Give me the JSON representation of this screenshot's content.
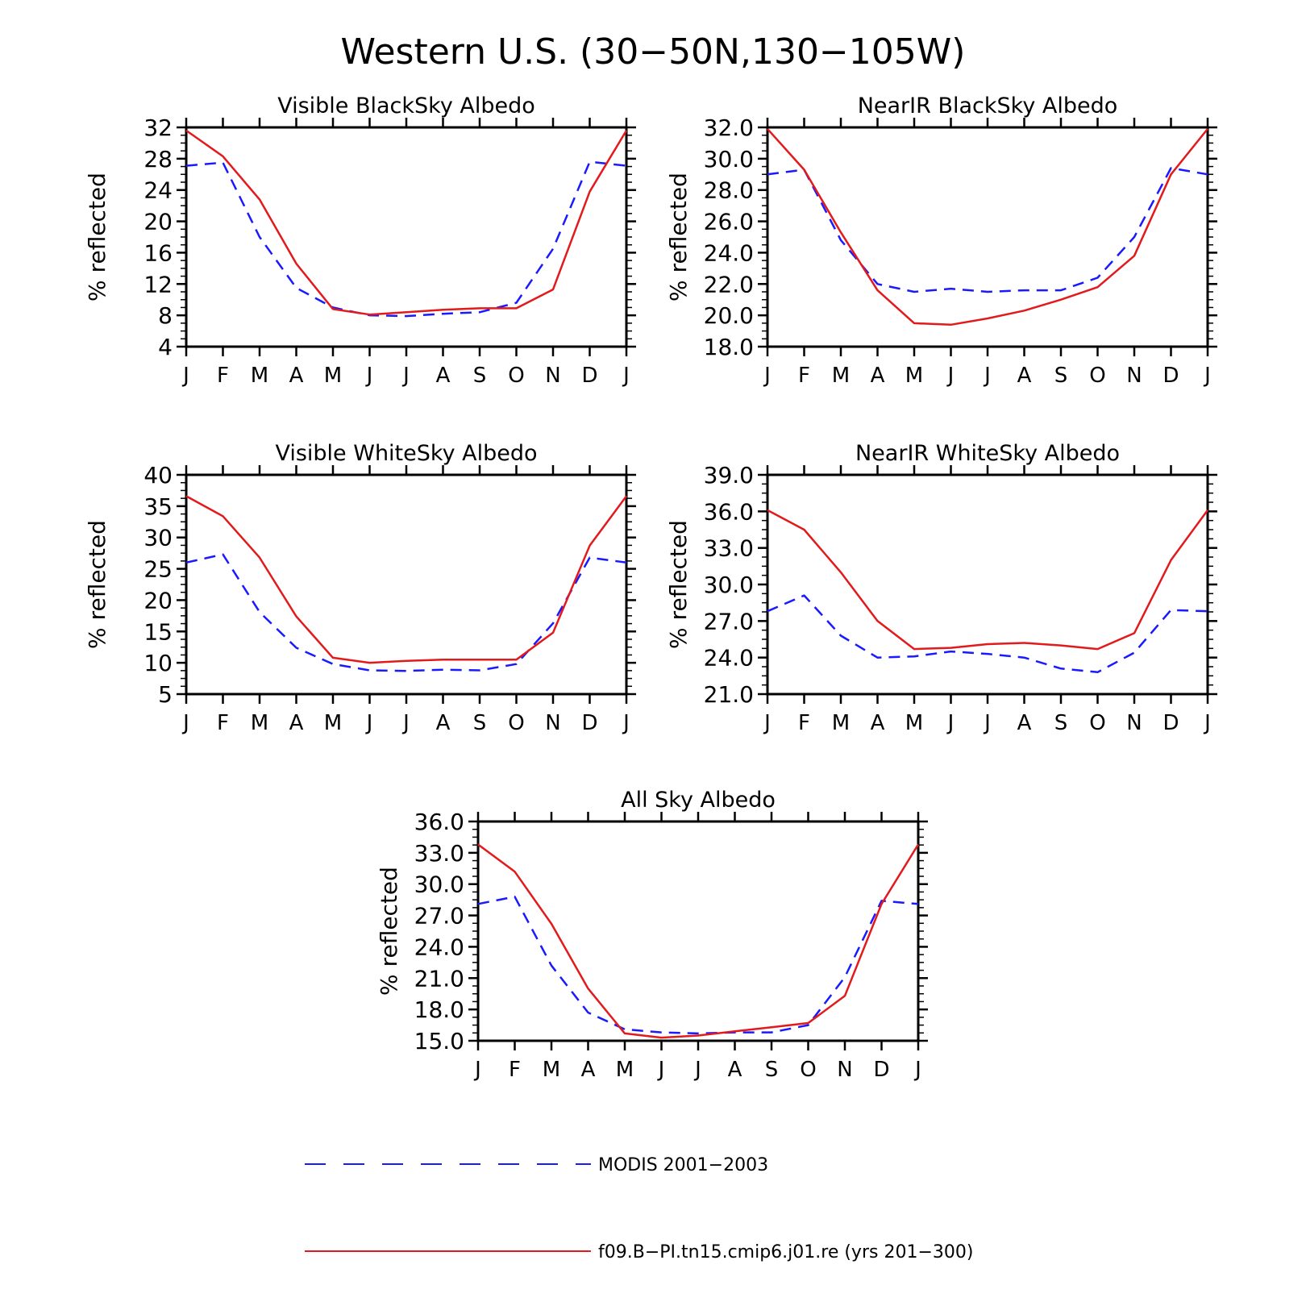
{
  "figure": {
    "title": "Western U.S. (30−50N,130−105W)",
    "colors": {
      "modis": "#1a1aff",
      "model": "#e31a1c",
      "axis": "#000000"
    }
  },
  "legend": {
    "entries": [
      {
        "key": "modis",
        "label": "MODIS 2001−2003",
        "style": "dashed"
      },
      {
        "key": "model",
        "label": "f09.B−PI.tn15.cmip6.j01.re (yrs 201−300)",
        "style": "solid"
      }
    ]
  },
  "chart_data": [
    {
      "type": "line",
      "title": "Visible BlackSky Albedo",
      "ylabel": "% reflected",
      "categories": [
        "J",
        "F",
        "M",
        "A",
        "M",
        "J",
        "J",
        "A",
        "S",
        "O",
        "N",
        "D",
        "J"
      ],
      "ylim": [
        4,
        32
      ],
      "yticks": [
        "4",
        "8",
        "12",
        "16",
        "20",
        "24",
        "28",
        "32"
      ],
      "series": [
        {
          "key": "modis",
          "values": [
            27.1,
            27.5,
            18.0,
            11.5,
            9.0,
            8.0,
            7.9,
            8.2,
            8.4,
            9.6,
            16.5,
            27.6,
            27.1
          ]
        },
        {
          "key": "model",
          "values": [
            31.6,
            28.3,
            22.8,
            14.6,
            8.8,
            8.1,
            8.4,
            8.7,
            8.9,
            8.9,
            11.3,
            23.8,
            31.6
          ]
        }
      ]
    },
    {
      "type": "line",
      "title": "NearIR BlackSky Albedo",
      "ylabel": "% reflected",
      "categories": [
        "J",
        "F",
        "M",
        "A",
        "M",
        "J",
        "J",
        "A",
        "S",
        "O",
        "N",
        "D",
        "J"
      ],
      "ylim": [
        18,
        32
      ],
      "yticks": [
        "18.0",
        "20.0",
        "22.0",
        "24.0",
        "26.0",
        "28.0",
        "30.0",
        "32.0"
      ],
      "series": [
        {
          "key": "modis",
          "values": [
            29.0,
            29.3,
            24.8,
            22.0,
            21.5,
            21.7,
            21.5,
            21.6,
            21.6,
            22.4,
            25.0,
            29.4,
            29.0
          ]
        },
        {
          "key": "model",
          "values": [
            31.9,
            29.3,
            25.3,
            21.6,
            19.5,
            19.4,
            19.8,
            20.3,
            21.0,
            21.8,
            23.8,
            29.0,
            31.9
          ]
        }
      ]
    },
    {
      "type": "line",
      "title": "Visible WhiteSky Albedo",
      "ylabel": "% reflected",
      "categories": [
        "J",
        "F",
        "M",
        "A",
        "M",
        "J",
        "J",
        "A",
        "S",
        "O",
        "N",
        "D",
        "J"
      ],
      "ylim": [
        5,
        40
      ],
      "yticks": [
        "5",
        "10",
        "15",
        "20",
        "25",
        "30",
        "35",
        "40"
      ],
      "series": [
        {
          "key": "modis",
          "values": [
            26.0,
            27.3,
            18.1,
            12.4,
            9.8,
            8.8,
            8.7,
            8.9,
            8.8,
            9.8,
            16.3,
            26.8,
            26.0
          ]
        },
        {
          "key": "model",
          "values": [
            36.6,
            33.4,
            26.8,
            17.4,
            10.8,
            10.0,
            10.3,
            10.5,
            10.5,
            10.5,
            14.8,
            28.7,
            36.6
          ]
        }
      ]
    },
    {
      "type": "line",
      "title": "NearIR WhiteSky Albedo",
      "ylabel": "% reflected",
      "categories": [
        "J",
        "F",
        "M",
        "A",
        "M",
        "J",
        "J",
        "A",
        "S",
        "O",
        "N",
        "D",
        "J"
      ],
      "ylim": [
        21,
        39
      ],
      "yticks": [
        "21.0",
        "24.0",
        "27.0",
        "30.0",
        "33.0",
        "36.0",
        "39.0"
      ],
      "series": [
        {
          "key": "modis",
          "values": [
            27.8,
            29.1,
            25.8,
            24.0,
            24.1,
            24.5,
            24.3,
            24.0,
            23.1,
            22.8,
            24.4,
            27.9,
            27.8
          ]
        },
        {
          "key": "model",
          "values": [
            36.1,
            34.5,
            31.0,
            27.0,
            24.7,
            24.8,
            25.1,
            25.2,
            25.0,
            24.7,
            26.0,
            32.0,
            36.1
          ]
        }
      ]
    },
    {
      "type": "line",
      "title": "All Sky Albedo",
      "ylabel": "% reflected",
      "categories": [
        "J",
        "F",
        "M",
        "A",
        "M",
        "J",
        "J",
        "A",
        "S",
        "O",
        "N",
        "D",
        "J"
      ],
      "ylim": [
        15,
        36
      ],
      "yticks": [
        "15.0",
        "18.0",
        "21.0",
        "24.0",
        "27.0",
        "30.0",
        "33.0",
        "36.0"
      ],
      "series": [
        {
          "key": "modis",
          "values": [
            28.1,
            28.8,
            22.2,
            17.7,
            16.1,
            15.8,
            15.7,
            15.8,
            15.8,
            16.5,
            21.1,
            28.4,
            28.1
          ]
        },
        {
          "key": "model",
          "values": [
            33.8,
            31.2,
            26.2,
            20.0,
            15.7,
            15.3,
            15.5,
            15.9,
            16.3,
            16.7,
            19.3,
            28.1,
            33.8
          ]
        }
      ]
    }
  ]
}
